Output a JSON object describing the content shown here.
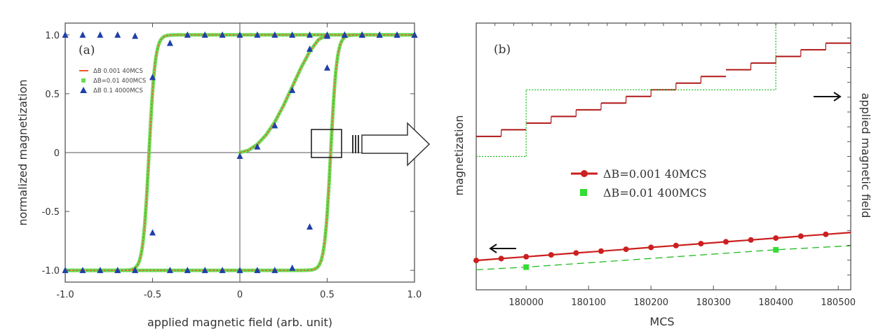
{
  "chart_data": [
    {
      "panel": "a",
      "panel_label": "(a)",
      "type": "line",
      "xlabel": "applied magnetic field (arb. unit)",
      "ylabel": "normalized magnetization",
      "xlim": [
        -1.0,
        1.0
      ],
      "ylim": [
        -1.1,
        1.1
      ],
      "xticks": [
        -1.0,
        -0.5,
        0,
        0.5,
        1.0
      ],
      "xtick_labels": [
        "-1.0",
        "-0.5",
        "0",
        "0.5",
        "1.0"
      ],
      "yticks": [
        -1.0,
        -0.5,
        0,
        0.5,
        1.0
      ],
      "ytick_labels": [
        "-1.0",
        "-0.5",
        "0",
        "0.5",
        "1.0"
      ],
      "zero_lines": true,
      "legend": {
        "placement": "top-left",
        "entries": [
          "ΔB 0.001  40MCS",
          "ΔB=0.01  400MCS",
          "ΔB 0.1  4000MCS"
        ]
      },
      "series": [
        {
          "kind": "line",
          "color": "#e85a2a",
          "branches": {
            "descending_switch": -0.52,
            "ascending_switch": 0.52,
            "width": 0.035
          },
          "virgin_curve": {
            "x": [
              0,
              0.05,
              0.1,
              0.15,
              0.2,
              0.25,
              0.3,
              0.35,
              0.4,
              0.45,
              0.5
            ],
            "y": [
              0,
              0.02,
              0.07,
              0.15,
              0.26,
              0.4,
              0.56,
              0.72,
              0.86,
              0.96,
              1.0
            ]
          }
        },
        {
          "kind": "line",
          "color": "#6ddc55",
          "stroke_width": 5
        },
        {
          "kind": "marker",
          "marker": "triangle",
          "color": "#1f3fa8",
          "upper_branch": {
            "x": [
              -1.0,
              -0.9,
              -0.8,
              -0.7,
              -0.6,
              -0.5,
              -0.4,
              -0.3,
              -0.2,
              -0.1,
              0,
              0.1,
              0.2,
              0.3,
              0.4,
              0.5,
              0.6,
              0.7,
              0.8,
              0.9,
              1.0
            ],
            "y": [
              1,
              1,
              1,
              1,
              0.99,
              0.64,
              0.93,
              1,
              1,
              1,
              1,
              1,
              1,
              1,
              1,
              1,
              1,
              1,
              1,
              1,
              1
            ]
          },
          "lower_branch": {
            "x": [
              -1.0,
              -0.9,
              -0.8,
              -0.7,
              -0.6,
              -0.5,
              -0.4,
              -0.3,
              -0.2,
              -0.1,
              0,
              0.1,
              0.2,
              0.3,
              0.4,
              0.5,
              0.6,
              0.7,
              0.8,
              0.9,
              1.0
            ],
            "y": [
              -1,
              -1,
              -1,
              -1,
              -1,
              -0.68,
              -1,
              -1,
              -1,
              -1,
              -1,
              -1,
              -1,
              -0.98,
              -0.63,
              0.72,
              1,
              1,
              1,
              1,
              1
            ]
          },
          "virgin": {
            "x": [
              0,
              0.1,
              0.2,
              0.3,
              0.4,
              0.5
            ],
            "y": [
              -0.03,
              0.05,
              0.23,
              0.53,
              0.88,
              0.99
            ]
          }
        }
      ],
      "annotations": [
        {
          "type": "zoom-box",
          "x": [
            0.42,
            0.58
          ],
          "y": [
            -0.05,
            0.22
          ]
        },
        {
          "type": "right-arrow",
          "description": "points to panel (b)"
        }
      ]
    },
    {
      "panel": "b",
      "panel_label": "(b)",
      "type": "line",
      "xlabel": "MCS",
      "ylabel": "magnetization",
      "ylabel_right": "applied magnetic field",
      "xlim": [
        179920,
        180520
      ],
      "xticks": [
        180000,
        180100,
        180200,
        180300,
        180400,
        180500
      ],
      "xtick_labels": [
        "180000",
        "180100",
        "180200",
        "180300",
        "180400",
        "180500"
      ],
      "legend": {
        "placement": "center",
        "entries": [
          "ΔB=0.001  40MCS",
          "ΔB=0.01  400MCS"
        ]
      },
      "field_axis": {
        "ylim": [
          0.4,
          0.8
        ],
        "series": [
          {
            "name_ref": 0,
            "color": "#b01818",
            "step_x": [
              179920,
              179960,
              180000,
              180040,
              180080,
              180120,
              180160,
              180200,
              180240,
              180280,
              180320,
              180360,
              180400,
              180440,
              180480,
              180520
            ],
            "step_y": [
              0.63,
              0.64,
              0.65,
              0.66,
              0.67,
              0.68,
              0.69,
              0.7,
              0.71,
              0.72,
              0.73,
              0.74,
              0.75,
              0.76,
              0.77
            ],
            "gaps_x": [
              180000,
              180320
            ]
          },
          {
            "name_ref": 1,
            "color": "#22bb22",
            "dashed": true,
            "step_x": [
              179920,
              180000,
              180400
            ],
            "step_y": [
              0.6,
              0.7
            ],
            "vertical_at": [
              180000,
              180400
            ]
          }
        ]
      },
      "magnetization_axis": {
        "ylim": [
          0.0,
          1.0
        ],
        "series": [
          {
            "name_ref": 0,
            "color": "#cc1f1f",
            "marker": "circle",
            "x": [
              179920,
              179960,
              180000,
              180040,
              180080,
              180120,
              180160,
              180200,
              180240,
              180280,
              180320,
              180360,
              180400,
              180440,
              180480
            ],
            "y": [
              0.11,
              0.117,
              0.124,
              0.131,
              0.138,
              0.145,
              0.152,
              0.159,
              0.166,
              0.173,
              0.18,
              0.187,
              0.194,
              0.201,
              0.208
            ]
          },
          {
            "name_ref": 1,
            "color": "#22bb22",
            "marker": "square",
            "dashed": true,
            "x": [
              179920,
              180000,
              180400,
              180520
            ],
            "y": [
              0.075,
              0.085,
              0.15,
              0.165
            ],
            "marker_x": [
              180000,
              180400
            ],
            "marker_y": [
              0.085,
              0.15
            ]
          }
        ]
      },
      "annotations": [
        {
          "type": "arrow-left",
          "meaning": "magnetization axis"
        },
        {
          "type": "arrow-right",
          "meaning": "applied magnetic field axis"
        }
      ]
    }
  ]
}
